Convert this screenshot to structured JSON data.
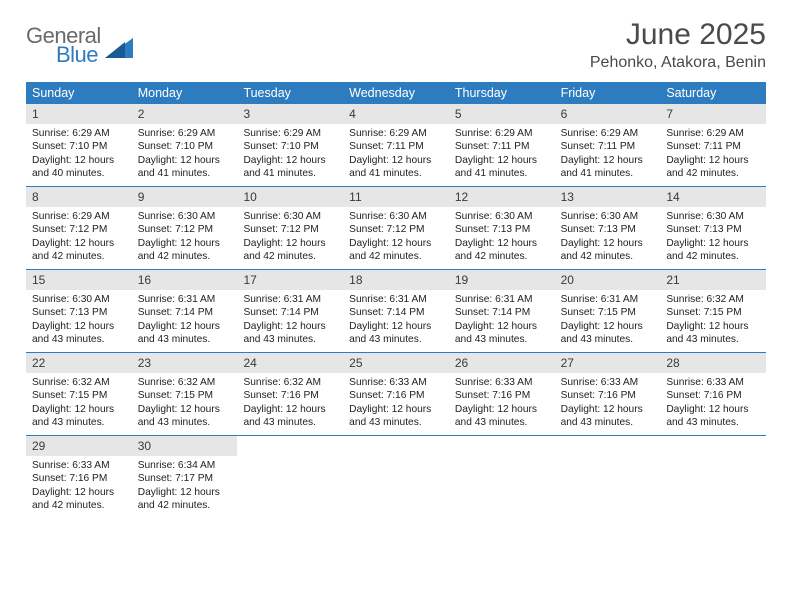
{
  "logo": {
    "word1": "General",
    "word2": "Blue"
  },
  "title": "June 2025",
  "location": "Pehonko, Atakora, Benin",
  "colors": {
    "header_bg": "#2e7cc0",
    "header_text": "#ffffff",
    "daynum_bg": "#e6e6e6",
    "rule": "#2e7cc0",
    "title_color": "#4a4a4a"
  },
  "fonts": {
    "title_size": 30,
    "subtitle_size": 16,
    "weekday_size": 12.5,
    "daynum_size": 12,
    "body_size": 10.2
  },
  "weekdays": [
    "Sunday",
    "Monday",
    "Tuesday",
    "Wednesday",
    "Thursday",
    "Friday",
    "Saturday"
  ],
  "labels": {
    "sunrise": "Sunrise:",
    "sunset": "Sunset:",
    "daylight": "Daylight:"
  },
  "weeks": [
    [
      {
        "d": 1,
        "sr": "6:29 AM",
        "ss": "7:10 PM",
        "dl": "12 hours and 40 minutes."
      },
      {
        "d": 2,
        "sr": "6:29 AM",
        "ss": "7:10 PM",
        "dl": "12 hours and 41 minutes."
      },
      {
        "d": 3,
        "sr": "6:29 AM",
        "ss": "7:10 PM",
        "dl": "12 hours and 41 minutes."
      },
      {
        "d": 4,
        "sr": "6:29 AM",
        "ss": "7:11 PM",
        "dl": "12 hours and 41 minutes."
      },
      {
        "d": 5,
        "sr": "6:29 AM",
        "ss": "7:11 PM",
        "dl": "12 hours and 41 minutes."
      },
      {
        "d": 6,
        "sr": "6:29 AM",
        "ss": "7:11 PM",
        "dl": "12 hours and 41 minutes."
      },
      {
        "d": 7,
        "sr": "6:29 AM",
        "ss": "7:11 PM",
        "dl": "12 hours and 42 minutes."
      }
    ],
    [
      {
        "d": 8,
        "sr": "6:29 AM",
        "ss": "7:12 PM",
        "dl": "12 hours and 42 minutes."
      },
      {
        "d": 9,
        "sr": "6:30 AM",
        "ss": "7:12 PM",
        "dl": "12 hours and 42 minutes."
      },
      {
        "d": 10,
        "sr": "6:30 AM",
        "ss": "7:12 PM",
        "dl": "12 hours and 42 minutes."
      },
      {
        "d": 11,
        "sr": "6:30 AM",
        "ss": "7:12 PM",
        "dl": "12 hours and 42 minutes."
      },
      {
        "d": 12,
        "sr": "6:30 AM",
        "ss": "7:13 PM",
        "dl": "12 hours and 42 minutes."
      },
      {
        "d": 13,
        "sr": "6:30 AM",
        "ss": "7:13 PM",
        "dl": "12 hours and 42 minutes."
      },
      {
        "d": 14,
        "sr": "6:30 AM",
        "ss": "7:13 PM",
        "dl": "12 hours and 42 minutes."
      }
    ],
    [
      {
        "d": 15,
        "sr": "6:30 AM",
        "ss": "7:13 PM",
        "dl": "12 hours and 43 minutes."
      },
      {
        "d": 16,
        "sr": "6:31 AM",
        "ss": "7:14 PM",
        "dl": "12 hours and 43 minutes."
      },
      {
        "d": 17,
        "sr": "6:31 AM",
        "ss": "7:14 PM",
        "dl": "12 hours and 43 minutes."
      },
      {
        "d": 18,
        "sr": "6:31 AM",
        "ss": "7:14 PM",
        "dl": "12 hours and 43 minutes."
      },
      {
        "d": 19,
        "sr": "6:31 AM",
        "ss": "7:14 PM",
        "dl": "12 hours and 43 minutes."
      },
      {
        "d": 20,
        "sr": "6:31 AM",
        "ss": "7:15 PM",
        "dl": "12 hours and 43 minutes."
      },
      {
        "d": 21,
        "sr": "6:32 AM",
        "ss": "7:15 PM",
        "dl": "12 hours and 43 minutes."
      }
    ],
    [
      {
        "d": 22,
        "sr": "6:32 AM",
        "ss": "7:15 PM",
        "dl": "12 hours and 43 minutes."
      },
      {
        "d": 23,
        "sr": "6:32 AM",
        "ss": "7:15 PM",
        "dl": "12 hours and 43 minutes."
      },
      {
        "d": 24,
        "sr": "6:32 AM",
        "ss": "7:16 PM",
        "dl": "12 hours and 43 minutes."
      },
      {
        "d": 25,
        "sr": "6:33 AM",
        "ss": "7:16 PM",
        "dl": "12 hours and 43 minutes."
      },
      {
        "d": 26,
        "sr": "6:33 AM",
        "ss": "7:16 PM",
        "dl": "12 hours and 43 minutes."
      },
      {
        "d": 27,
        "sr": "6:33 AM",
        "ss": "7:16 PM",
        "dl": "12 hours and 43 minutes."
      },
      {
        "d": 28,
        "sr": "6:33 AM",
        "ss": "7:16 PM",
        "dl": "12 hours and 43 minutes."
      }
    ],
    [
      {
        "d": 29,
        "sr": "6:33 AM",
        "ss": "7:16 PM",
        "dl": "12 hours and 42 minutes."
      },
      {
        "d": 30,
        "sr": "6:34 AM",
        "ss": "7:17 PM",
        "dl": "12 hours and 42 minutes."
      },
      null,
      null,
      null,
      null,
      null
    ]
  ]
}
